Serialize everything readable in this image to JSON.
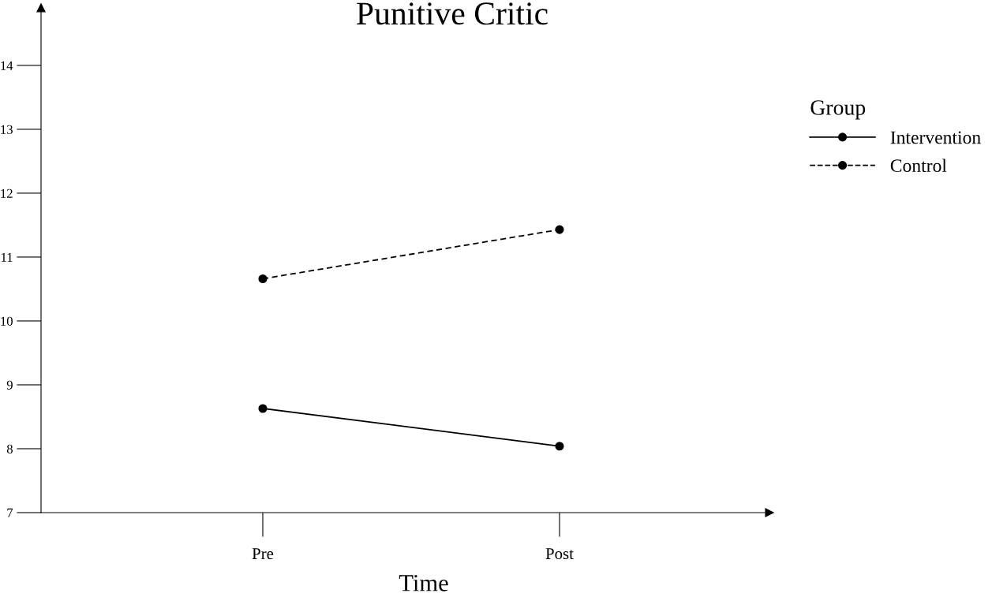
{
  "chart_data": {
    "type": "line",
    "title": "Punitive Critic",
    "xlabel": "Time",
    "categories": [
      "Pre",
      "Post"
    ],
    "series": [
      {
        "name": "Intervention",
        "color": "#000000",
        "values": [
          8.63,
          8.04
        ],
        "line_style": "solid"
      },
      {
        "name": "Control",
        "color": "#000000",
        "values": [
          10.66,
          11.43
        ],
        "line_style": "dashed"
      }
    ],
    "legend_title": "Group",
    "legend": "right",
    "marker": "circle",
    "grid": false,
    "ylim": [
      7,
      14.9
    ],
    "yticks": [
      7,
      8,
      9,
      10,
      11,
      12,
      13,
      14
    ]
  }
}
